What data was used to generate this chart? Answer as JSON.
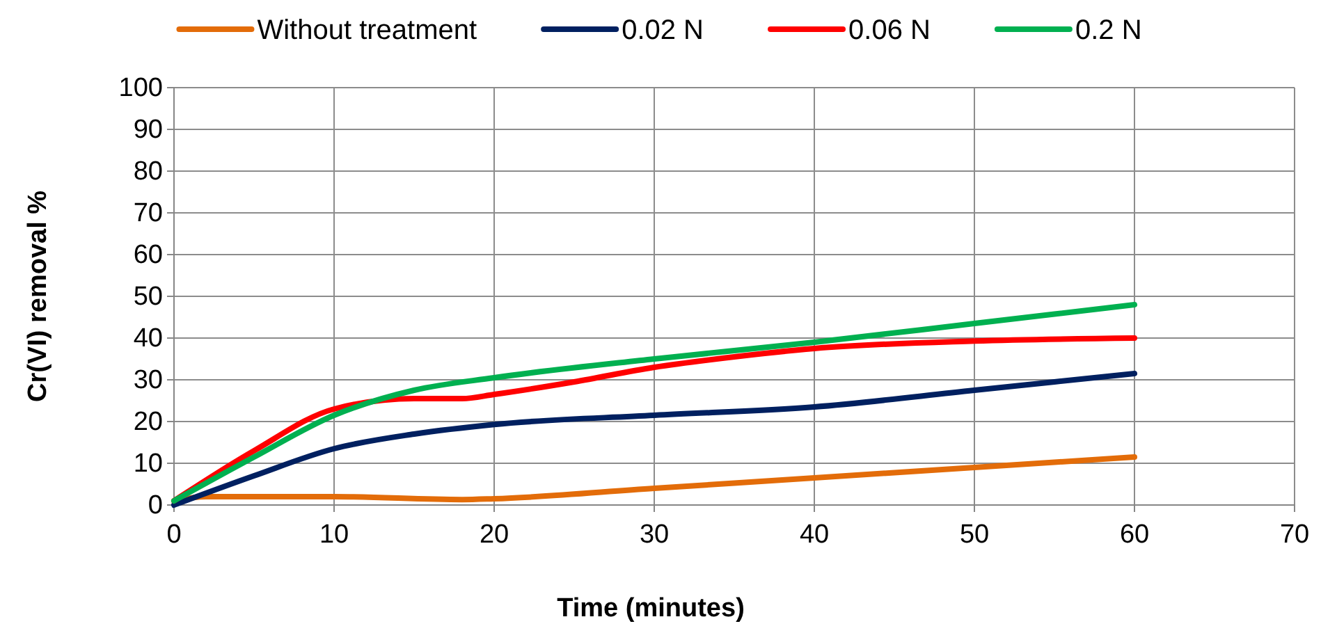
{
  "chart_data": {
    "type": "line",
    "xlabel": "Time (minutes)",
    "ylabel": "Cr(VI) removal %",
    "xlim": [
      0,
      70
    ],
    "xticks": [
      0,
      10,
      20,
      30,
      40,
      50,
      60,
      70
    ],
    "ylim": [
      0,
      100
    ],
    "yticks": [
      0,
      10,
      20,
      30,
      40,
      50,
      60,
      70,
      80,
      90,
      100
    ],
    "grid": true,
    "legend": "top",
    "line_style": "solid",
    "marker": "none",
    "series": [
      {
        "name": "Without treatment",
        "color": "#e36c09",
        "x": [
          0,
          2,
          10,
          18,
          20,
          30,
          40,
          50,
          60
        ],
        "values": [
          1,
          2,
          2,
          1.3,
          1.5,
          4,
          6.5,
          9,
          11.5
        ]
      },
      {
        "name": "0.02 N",
        "color": "#002060",
        "x": [
          0,
          5,
          10,
          15,
          20,
          30,
          40,
          50,
          60
        ],
        "values": [
          0,
          7,
          13.5,
          17,
          19.3,
          21.5,
          23.5,
          27.5,
          31.5
        ]
      },
      {
        "name": "0.06 N",
        "color": "#ff0000",
        "x": [
          0,
          5,
          10,
          15,
          18,
          20,
          25,
          30,
          35,
          40,
          50,
          60
        ],
        "values": [
          1,
          13,
          23,
          25.5,
          25.5,
          26.5,
          29.5,
          33,
          35.5,
          37.5,
          39.3,
          40
        ]
      },
      {
        "name": "0.2 N",
        "color": "#00b050",
        "x": [
          0,
          5,
          10,
          15,
          20,
          30,
          40,
          50,
          60
        ],
        "values": [
          1,
          11.5,
          21.5,
          27.5,
          30.5,
          35,
          39,
          43.5,
          48
        ]
      }
    ]
  }
}
